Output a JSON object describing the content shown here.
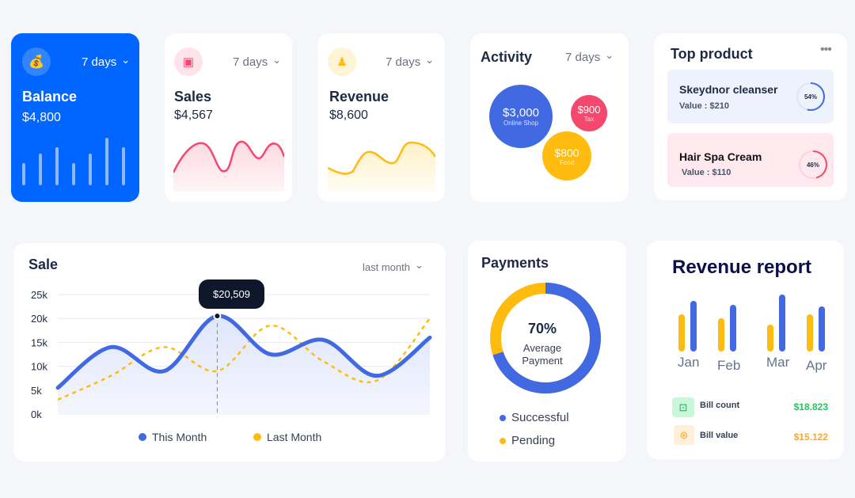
{
  "balance": {
    "period": "7 days",
    "title": "Balance",
    "amount": "$4,800",
    "bars": [
      0.35,
      0.5,
      0.6,
      0.35,
      0.5,
      0.75,
      0.6
    ]
  },
  "sales": {
    "period": "7 days",
    "title": "Sales",
    "amount": "$4,567",
    "color": "#f5486f"
  },
  "revenue": {
    "period": "7 days",
    "title": "Revenue",
    "amount": "$8,600",
    "color": "#ffbb0e"
  },
  "activity": {
    "title": "Activity",
    "period": "7 days",
    "bubbles": [
      {
        "value": "$3,000",
        "label": "Online Shop",
        "color": "#4169e1"
      },
      {
        "value": "$900",
        "label": "Tax",
        "color": "#f5486f"
      },
      {
        "value": "$800",
        "label": "Food",
        "color": "#ffbb0e"
      }
    ]
  },
  "top_product": {
    "title": "Top product",
    "items": [
      {
        "name": "Skeydnor cleanser",
        "value": "Value : $210",
        "percent": "54%",
        "pct": 54
      },
      {
        "name": "Hair Spa Cream",
        "value": "Value : $110",
        "percent": "46%",
        "pct": 46
      }
    ]
  },
  "sale": {
    "title": "Sale",
    "period": "last month",
    "tooltip": "$20,509",
    "legend": [
      "This Month",
      "Last Month"
    ]
  },
  "chart_data": {
    "type": "line",
    "y_ticks": [
      "25k",
      "20k",
      "15k",
      "10k",
      "5k",
      "0k"
    ],
    "ylim": [
      0,
      25000
    ],
    "series": [
      {
        "name": "This Month",
        "color": "#4169e1",
        "values": [
          5500,
          14000,
          9000,
          20509,
          12500,
          15500,
          8000,
          16000
        ]
      },
      {
        "name": "Last Month",
        "color": "#ffbb0e",
        "values": [
          3000,
          8000,
          14000,
          9000,
          18500,
          11000,
          7000,
          20000
        ]
      }
    ]
  },
  "payments": {
    "title": "Payments",
    "percent": "70%",
    "label1": "Average",
    "label2": "Payment",
    "successful_pct": 70,
    "legend": [
      "Successful",
      "Pending"
    ]
  },
  "revenue_report": {
    "title": "Revenue report",
    "months": [
      "Jan",
      "Feb",
      "Mar",
      "Apr"
    ],
    "yellow": [
      0.55,
      0.5,
      0.4,
      0.55
    ],
    "blue": [
      0.75,
      0.7,
      0.85,
      0.67
    ],
    "bill_count_label": "Bill count",
    "bill_count": "$18.823",
    "bill_value_label": "Bill value",
    "bill_value": "$15.122"
  }
}
